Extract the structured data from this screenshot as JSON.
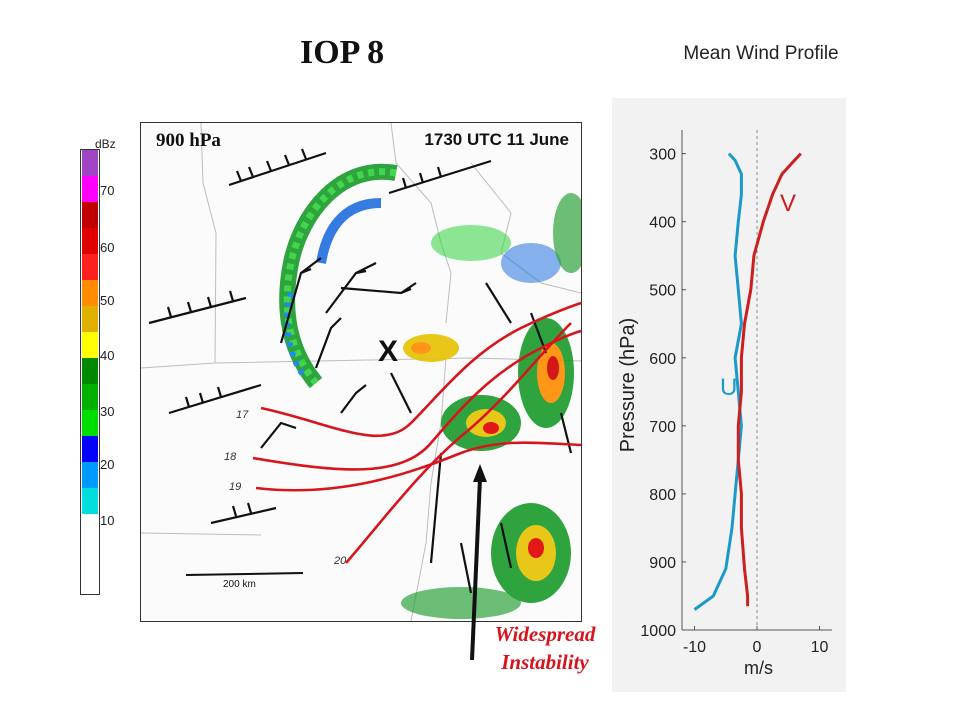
{
  "title": "IOP 8",
  "profile_title": "Mean Wind Profile",
  "map": {
    "level_label": "900 hPa",
    "time_label": "1730 UTC 11 June",
    "marker": "X",
    "scale_label": "200 km",
    "contour_labels": [
      "17",
      "18",
      "19",
      "20"
    ]
  },
  "colorbar": {
    "unit": "dBz",
    "ticks": [
      "70",
      "60",
      "50",
      "40",
      "30",
      "20",
      "10"
    ],
    "colors": [
      "#9e44c4",
      "#ff00ff",
      "#c00000",
      "#e00000",
      "#ff2020",
      "#ff8c00",
      "#e0b000",
      "#ffff00",
      "#008800",
      "#00b000",
      "#00dd00",
      "#0000ff",
      "#0099ff",
      "#00dddd",
      "#ffffff"
    ]
  },
  "annotation": {
    "line1": "Widespread",
    "line2": "Instability"
  },
  "chart_data": {
    "type": "line",
    "title": "Mean Wind Profile",
    "xlabel": "m/s",
    "ylabel": "Pressure (hPa)",
    "xlim": [
      -12,
      12
    ],
    "ylim": [
      1000,
      280
    ],
    "xticks": [
      -10,
      0,
      10
    ],
    "yticks": [
      300,
      400,
      500,
      600,
      700,
      800,
      900,
      1000
    ],
    "series": [
      {
        "name": "U",
        "color": "#1b9ac9",
        "x": [
          -10,
          -7,
          -5,
          -4,
          -3.5,
          -3,
          -2.5,
          -3,
          -3.5,
          -2.5,
          -3,
          -3.5,
          -3,
          -2.5,
          -2.5,
          -3.5,
          -4.5
        ],
        "y": [
          970,
          950,
          910,
          850,
          800,
          750,
          700,
          650,
          600,
          550,
          500,
          450,
          400,
          360,
          330,
          310,
          300
        ]
      },
      {
        "name": "V",
        "color": "#cc1f1f",
        "x": [
          -1.5,
          -1.5,
          -2,
          -2.5,
          -2.5,
          -3,
          -3,
          -2.5,
          -2.5,
          -2,
          -1,
          -0.5,
          1,
          2.5,
          4,
          6,
          7
        ],
        "y": [
          965,
          950,
          910,
          850,
          800,
          750,
          700,
          650,
          600,
          550,
          500,
          450,
          400,
          360,
          330,
          310,
          300
        ]
      }
    ],
    "reference_line": {
      "x": 0,
      "style": "dashed"
    }
  }
}
